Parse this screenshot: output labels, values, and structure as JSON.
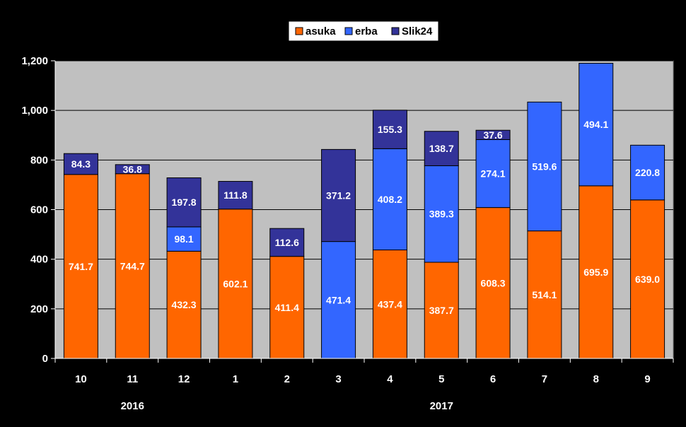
{
  "chart_data": {
    "type": "bar",
    "stacked": true,
    "categories": [
      "10",
      "11",
      "12",
      "1",
      "2",
      "3",
      "4",
      "5",
      "6",
      "7",
      "8",
      "9"
    ],
    "year_labels": [
      {
        "label": "2016",
        "under_categories": [
          "10",
          "11",
          "12"
        ]
      },
      {
        "label": "2017",
        "under_categories": [
          "1",
          "2",
          "3",
          "4",
          "5",
          "6",
          "7",
          "8",
          "9"
        ]
      }
    ],
    "series": [
      {
        "name": "asuka",
        "color": "#ff6600",
        "label_color": "#ffffff",
        "values": [
          741.7,
          744.7,
          432.3,
          602.1,
          411.4,
          0,
          437.4,
          387.7,
          608.3,
          514.1,
          695.9,
          639.0
        ],
        "labels": [
          "741.7",
          "744.7",
          "432.3",
          "602.1",
          "411.4",
          "",
          "437.4",
          "387.7",
          "608.3",
          "514.1",
          "695.9",
          "639.0"
        ]
      },
      {
        "name": "erba",
        "color": "#3366ff",
        "label_color": "#ffffff",
        "values": [
          0,
          0,
          98.1,
          0,
          0,
          471.4,
          408.2,
          389.3,
          274.1,
          519.6,
          494.1,
          220.8
        ],
        "labels": [
          "",
          "",
          "98.1",
          "",
          "",
          "471.4",
          "408.2",
          "389.3",
          "274.1",
          "519.6",
          "494.1",
          "220.8"
        ]
      },
      {
        "name": "Slik24",
        "color": "#333399",
        "label_color": "#ffffff",
        "values": [
          84.3,
          36.8,
          197.8,
          111.8,
          112.6,
          371.2,
          155.3,
          138.7,
          37.6,
          0,
          0,
          0
        ],
        "labels": [
          "84.3",
          "36.8",
          "197.8",
          "111.8",
          "112.6",
          "371.2",
          "155.3",
          "138.7",
          "37.6",
          "",
          "",
          ""
        ]
      }
    ],
    "ylim": [
      0,
      1200
    ],
    "yticks": [
      {
        "value": 0,
        "label": "0"
      },
      {
        "value": 200,
        "label": "200"
      },
      {
        "value": 400,
        "label": "400"
      },
      {
        "value": 600,
        "label": "600"
      },
      {
        "value": 800,
        "label": "800"
      },
      {
        "value": 1000,
        "label": "1,000"
      },
      {
        "value": 1200,
        "label": "1,200"
      }
    ],
    "grid": true,
    "legend": "top-center",
    "colors": {
      "page_background": "#000000",
      "plot_background": "#c0c0c0",
      "gridline": "#000000",
      "text": "#ffffff"
    }
  }
}
